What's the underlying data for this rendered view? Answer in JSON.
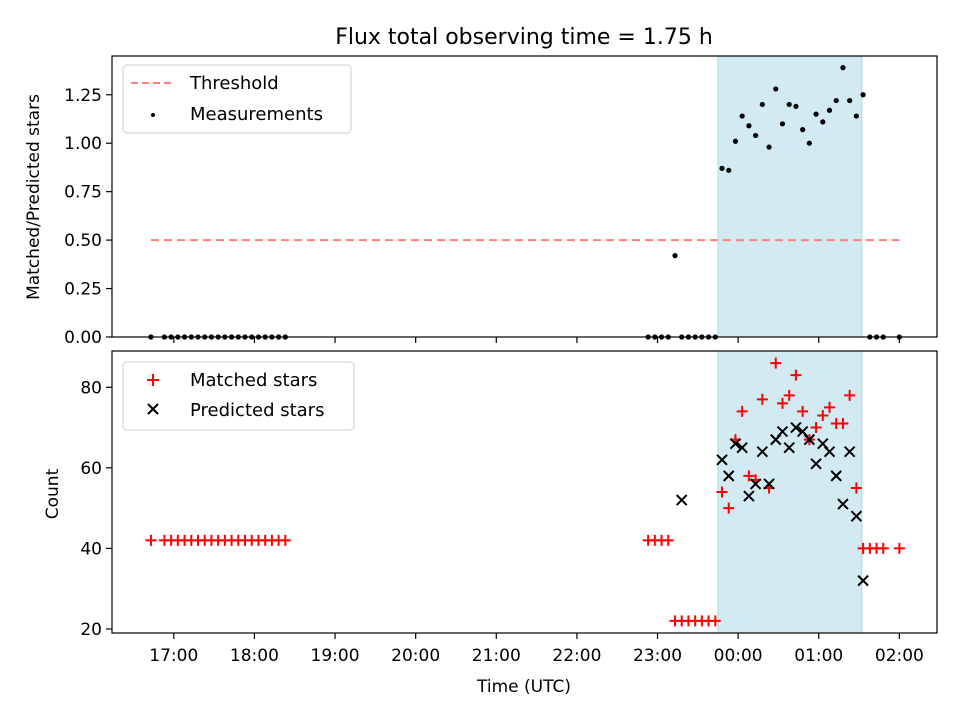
{
  "figure": {
    "title": "Flux total observing time = 1.75 h",
    "xlabel": "Time (UTC)"
  },
  "colors": {
    "threshold": "#ff7f7f",
    "measurement": "#000000",
    "matched": "#ff0000",
    "predicted": "#000000",
    "span": "#add8e6",
    "axes": "#000000"
  },
  "chart_data": [
    {
      "type": "scatter",
      "ylabel": "Matched/Predicted stars",
      "xlim": [
        "16:14",
        "02:28"
      ],
      "ylim": [
        0,
        1.45
      ],
      "yticks": [
        0.0,
        0.25,
        0.5,
        0.75,
        1.0,
        1.25
      ],
      "ytick_labels": [
        "0.00",
        "0.25",
        "0.50",
        "0.75",
        "1.00",
        "1.25"
      ],
      "xticks": [
        "17:00",
        "18:00",
        "19:00",
        "20:00",
        "21:00",
        "22:00",
        "23:00",
        "00:00",
        "01:00",
        "02:00"
      ],
      "highlight_span": [
        "23:45",
        "01:32"
      ],
      "legend": {
        "location": "upper left",
        "entries": [
          "Threshold",
          "Measurements"
        ]
      },
      "series": [
        {
          "name": "Threshold",
          "style": "dashed-line",
          "x": [
            "16:43",
            "02:00"
          ],
          "y": [
            0.5,
            0.5
          ]
        },
        {
          "name": "Measurements",
          "style": "dot",
          "x": [
            "16:43",
            "16:53",
            "16:58",
            "17:03",
            "17:08",
            "17:13",
            "17:18",
            "17:23",
            "17:28",
            "17:33",
            "17:38",
            "17:43",
            "17:48",
            "17:53",
            "17:58",
            "18:03",
            "18:08",
            "18:13",
            "18:18",
            "18:23",
            "22:53",
            "22:58",
            "23:03",
            "23:08",
            "23:13",
            "23:18",
            "23:23",
            "23:28",
            "23:33",
            "23:38",
            "23:43",
            "23:48",
            "23:53",
            "23:58",
            "00:03",
            "00:08",
            "00:13",
            "00:18",
            "00:23",
            "00:28",
            "00:33",
            "00:38",
            "00:43",
            "00:48",
            "00:53",
            "00:58",
            "01:03",
            "01:08",
            "01:13",
            "01:18",
            "01:23",
            "01:28",
            "01:33",
            "01:38",
            "01:43",
            "01:48",
            "02:00"
          ],
          "y": [
            0,
            0,
            0,
            0,
            0,
            0,
            0,
            0,
            0,
            0,
            0,
            0,
            0,
            0,
            0,
            0,
            0,
            0,
            0,
            0,
            0,
            0,
            0,
            0,
            0.42,
            0,
            0,
            0,
            0,
            0,
            0,
            0.87,
            0.86,
            1.01,
            1.14,
            1.09,
            1.04,
            1.2,
            0.98,
            1.28,
            1.1,
            1.2,
            1.19,
            1.07,
            1.0,
            1.15,
            1.11,
            1.17,
            1.22,
            1.39,
            1.22,
            1.14,
            1.25,
            0,
            0,
            0,
            0
          ]
        }
      ]
    },
    {
      "type": "scatter",
      "ylabel": "Count",
      "xlabel": "Time (UTC)",
      "xlim": [
        "16:14",
        "02:28"
      ],
      "ylim": [
        19,
        89
      ],
      "yticks": [
        20,
        40,
        60,
        80
      ],
      "ytick_labels": [
        "20",
        "40",
        "60",
        "80"
      ],
      "xticks": [
        "17:00",
        "18:00",
        "19:00",
        "20:00",
        "21:00",
        "22:00",
        "23:00",
        "00:00",
        "01:00",
        "02:00"
      ],
      "xtick_labels": [
        "17:00",
        "18:00",
        "19:00",
        "20:00",
        "21:00",
        "22:00",
        "23:00",
        "00:00",
        "01:00",
        "02:00"
      ],
      "highlight_span": [
        "23:45",
        "01:32"
      ],
      "legend": {
        "location": "upper left",
        "entries": [
          "Matched stars",
          "Predicted stars"
        ]
      },
      "series": [
        {
          "name": "Matched stars",
          "style": "plus",
          "x": [
            "16:43",
            "16:53",
            "16:58",
            "17:03",
            "17:08",
            "17:13",
            "17:18",
            "17:23",
            "17:28",
            "17:33",
            "17:38",
            "17:43",
            "17:48",
            "17:53",
            "17:58",
            "18:03",
            "18:08",
            "18:13",
            "18:18",
            "18:23",
            "22:53",
            "22:58",
            "23:03",
            "23:08",
            "23:13",
            "23:18",
            "23:23",
            "23:28",
            "23:33",
            "23:38",
            "23:43",
            "23:48",
            "23:53",
            "23:58",
            "00:03",
            "00:08",
            "00:13",
            "00:18",
            "00:23",
            "00:28",
            "00:33",
            "00:38",
            "00:43",
            "00:48",
            "00:53",
            "00:58",
            "01:03",
            "01:08",
            "01:13",
            "01:18",
            "01:23",
            "01:28",
            "01:33",
            "01:38",
            "01:43",
            "01:48",
            "02:00"
          ],
          "y": [
            42,
            42,
            42,
            42,
            42,
            42,
            42,
            42,
            42,
            42,
            42,
            42,
            42,
            42,
            42,
            42,
            42,
            42,
            42,
            42,
            42,
            42,
            42,
            42,
            22,
            22,
            22,
            22,
            22,
            22,
            22,
            54,
            50,
            67,
            74,
            58,
            57,
            77,
            55,
            86,
            76,
            78,
            83,
            74,
            67,
            70,
            73,
            75,
            71,
            71,
            78,
            55,
            40,
            40,
            40,
            40,
            40
          ]
        },
        {
          "name": "Predicted stars",
          "style": "x",
          "x": [
            "23:18",
            "23:48",
            "23:53",
            "23:58",
            "00:03",
            "00:08",
            "00:13",
            "00:18",
            "00:23",
            "00:28",
            "00:33",
            "00:38",
            "00:43",
            "00:48",
            "00:53",
            "00:58",
            "01:03",
            "01:08",
            "01:13",
            "01:18",
            "01:23",
            "01:28",
            "01:33"
          ],
          "y": [
            52,
            62,
            58,
            66,
            65,
            53,
            56,
            64,
            56,
            67,
            69,
            65,
            70,
            69,
            67,
            61,
            66,
            64,
            58,
            51,
            64,
            48,
            32
          ]
        }
      ]
    }
  ]
}
